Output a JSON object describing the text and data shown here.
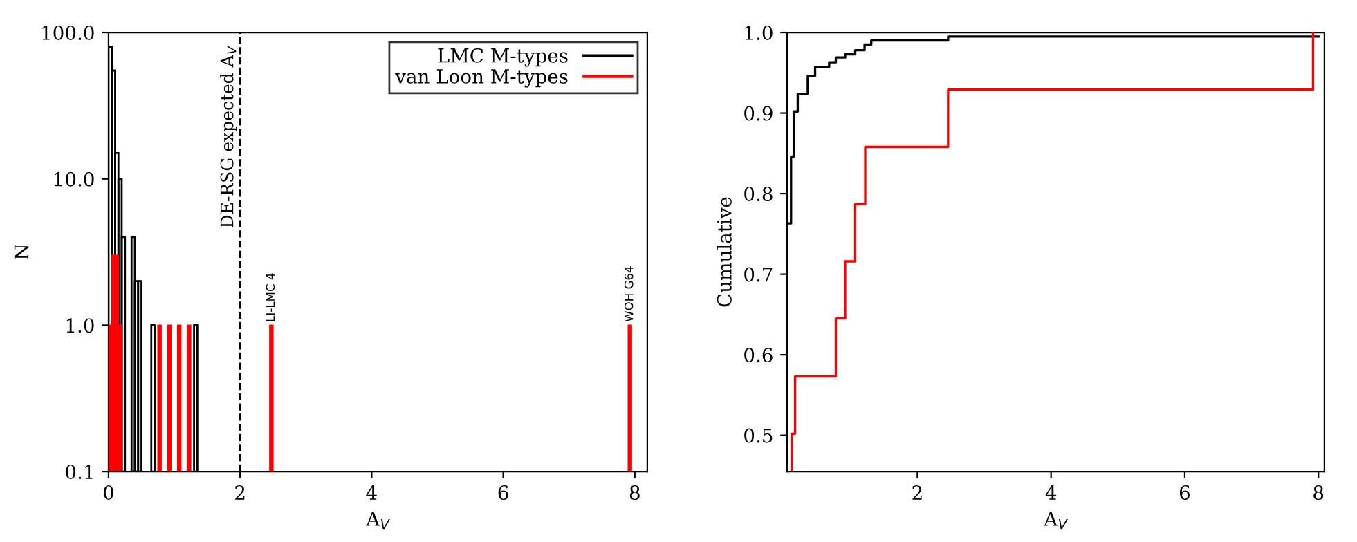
{
  "chart_data": [
    {
      "type": "histogram",
      "xlabel": "A$_{V}$",
      "ylabel": "N",
      "log": "y",
      "xlim": [
        0,
        8.19
      ],
      "ylim": [
        0.1,
        100
      ],
      "xticks": [
        0,
        2,
        4,
        6,
        8
      ],
      "yticks": [
        {
          "value": 0.1,
          "label": "0.1"
        },
        {
          "value": 1,
          "label": "1.0"
        },
        {
          "value": 10,
          "label": "10.0"
        },
        {
          "value": 100,
          "label": "100.0"
        }
      ],
      "legend": "top right",
      "grid": false,
      "series": [
        {
          "name": "LMC M-types",
          "color": "#000000",
          "values": [
            80,
            55,
            15,
            10,
            4,
            null,
            4,
            2,
            2,
            null,
            1,
            null,
            null,
            null,
            null,
            null,
            null,
            null,
            null,
            null,
            1,
            null,
            null,
            null,
            null
          ]
        },
        {
          "name": "van Loon M-types",
          "color": "#ff0000",
          "values": [
            1,
            3,
            3,
            1,
            null,
            null,
            null,
            null,
            null,
            null,
            null,
            null,
            1,
            null,
            1,
            null,
            1,
            null,
            1,
            null,
            null,
            null,
            1,
            null,
            1
          ]
        }
      ],
      "bins": [
        0,
        0.05,
        0.1,
        0.15,
        0.2,
        0.25,
        0.35,
        0.4,
        0.45,
        0.5,
        0.65,
        0.7,
        0.75,
        0.8,
        0.9,
        0.95,
        1.05,
        1.1,
        1.2,
        1.25,
        1.3,
        1.35,
        2.45,
        2.5,
        7.9,
        7.95
      ],
      "ref_lines": [
        {
          "axis": "x",
          "value": 2,
          "label": "DE-RSG expected A$_{V}$",
          "color": "#000000",
          "line_style": "dashed"
        }
      ],
      "annotations": [
        {
          "text": "LI-LMC 4",
          "x": 2.475,
          "y": 1
        },
        {
          "text": "WOH G64",
          "x": 7.925,
          "y": 1
        }
      ]
    },
    {
      "type": "step",
      "xlabel": "A$_{V}$",
      "ylabel": "Cumulative",
      "xlim": [
        0.05,
        8.09
      ],
      "ylim": [
        0.455,
        1.0
      ],
      "xticks": [
        2,
        4,
        6,
        8
      ],
      "yticks": [
        {
          "value": 0.5,
          "label": "0.5"
        },
        {
          "value": 0.6,
          "label": "0.6"
        },
        {
          "value": 0.7,
          "label": "0.7"
        },
        {
          "value": 0.8,
          "label": "0.8"
        },
        {
          "value": 0.9,
          "label": "0.9"
        },
        {
          "value": 1.0,
          "label": "1.0"
        }
      ],
      "grid": false,
      "series": [
        {
          "color": "#000000",
          "x": [
            0.05,
            0.05,
            0.11,
            0.15,
            0.21,
            0.36,
            0.47,
            0.68,
            0.78,
            0.92,
            1.07,
            1.21,
            1.31,
            2.46,
            8.0
          ],
          "values": [
            0.456,
            0.763,
            0.846,
            0.902,
            0.924,
            0.946,
            0.957,
            0.963,
            0.969,
            0.973,
            0.978,
            0.985,
            0.99,
            0.995,
            0.995
          ]
        },
        {
          "color": "#ff0000",
          "x": [
            0.12,
            0.12,
            0.17,
            0.78,
            0.92,
            1.07,
            1.22,
            2.46,
            7.92
          ],
          "values": [
            0.456,
            0.502,
            0.573,
            0.645,
            0.716,
            0.787,
            0.858,
            0.929,
            1.0
          ]
        }
      ]
    }
  ]
}
